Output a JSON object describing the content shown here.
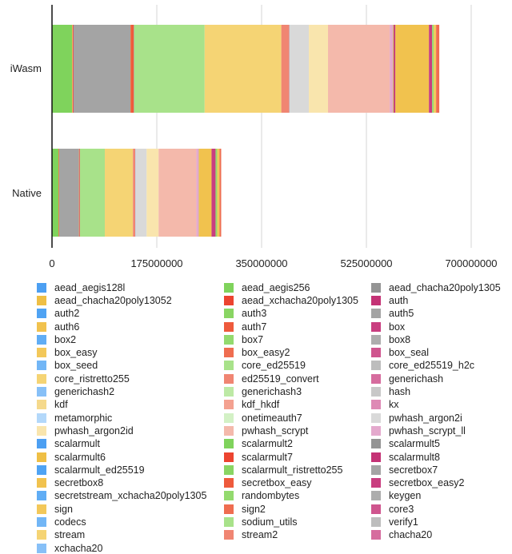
{
  "chart_data": {
    "type": "bar",
    "orientation": "horizontal",
    "stacked": true,
    "title": "",
    "xlabel": "",
    "ylabel": "",
    "categories": [
      "iWasm",
      "Native"
    ],
    "xlim": [
      0,
      700000000
    ],
    "xticks": [
      "0",
      "175000000",
      "350000000",
      "525000000",
      "700000000"
    ],
    "xtick_values": [
      0,
      175000000,
      350000000,
      525000000,
      700000000
    ],
    "grid": true,
    "legend_position": "bottom",
    "series": [
      {
        "name": "aead_aegis128l",
        "color": "#4c9ff2",
        "values": [
          500000,
          300000
        ]
      },
      {
        "name": "aead_aegis256",
        "color": "#7fd35c",
        "values": [
          33000000,
          10500000
        ]
      },
      {
        "name": "aead_chacha20poly1305",
        "color": "#949494",
        "values": [
          0,
          0
        ]
      },
      {
        "name": "aead_chacha20poly13052",
        "color": "#efbf45",
        "values": [
          1000000,
          500000
        ]
      },
      {
        "name": "aead_xchacha20poly1305",
        "color": "#ec4430",
        "values": [
          1300000,
          600000
        ]
      },
      {
        "name": "auth",
        "color": "#c43275",
        "values": [
          200000,
          100000
        ]
      },
      {
        "name": "auth2",
        "color": "#4fa3f3",
        "values": [
          100000,
          100000
        ]
      },
      {
        "name": "auth3",
        "color": "#89d563",
        "values": [
          0,
          0
        ]
      },
      {
        "name": "auth5",
        "color": "#a4a4a4",
        "values": [
          95000000,
          33000000
        ]
      },
      {
        "name": "auth6",
        "color": "#f1c24e",
        "values": [
          200000,
          100000
        ]
      },
      {
        "name": "auth7",
        "color": "#ee5a3c",
        "values": [
          5300000,
          1300000
        ]
      },
      {
        "name": "box",
        "color": "#c93e80",
        "values": [
          200000,
          100000
        ]
      },
      {
        "name": "box2",
        "color": "#60adf5",
        "values": [
          100000,
          100000
        ]
      },
      {
        "name": "box7",
        "color": "#93da6e",
        "values": [
          0,
          0
        ]
      },
      {
        "name": "box8",
        "color": "#adadad",
        "values": [
          0,
          0
        ]
      },
      {
        "name": "box_easy",
        "color": "#f3c85a",
        "values": [
          0,
          0
        ]
      },
      {
        "name": "box_easy2",
        "color": "#ef6d50",
        "values": [
          0,
          0
        ]
      },
      {
        "name": "box_seal",
        "color": "#cf558e",
        "values": [
          0,
          0
        ]
      },
      {
        "name": "box_seed",
        "color": "#72b6f6",
        "values": [
          0,
          0
        ]
      },
      {
        "name": "core_ed25519",
        "color": "#a8e28a",
        "values": [
          118000000,
          41500000
        ]
      },
      {
        "name": "core_ed25519_h2c",
        "color": "#bdbdbd",
        "values": [
          0,
          0
        ]
      },
      {
        "name": "core_ristretto255",
        "color": "#f5d474",
        "values": [
          128000000,
          47000000
        ]
      },
      {
        "name": "ed25519_convert",
        "color": "#f08572",
        "values": [
          13500000,
          4000000
        ]
      },
      {
        "name": "generichash",
        "color": "#d66c9e",
        "values": [
          0,
          0
        ]
      },
      {
        "name": "generichash2",
        "color": "#87c0f7",
        "values": [
          500000,
          300000
        ]
      },
      {
        "name": "generichash3",
        "color": "#bde9a5",
        "values": [
          0,
          0
        ]
      },
      {
        "name": "hash",
        "color": "#c8c8c8",
        "values": [
          0,
          0
        ]
      },
      {
        "name": "kdf",
        "color": "#f5d98c",
        "values": [
          0,
          0
        ]
      },
      {
        "name": "kdf_hkdf",
        "color": "#f4a190",
        "values": [
          0,
          0
        ]
      },
      {
        "name": "kx",
        "color": "#de8ab5",
        "values": [
          0,
          0
        ]
      },
      {
        "name": "metamorphic",
        "color": "#b3d8fa",
        "values": [
          0,
          0
        ]
      },
      {
        "name": "onetimeauth7",
        "color": "#d3f1c5",
        "values": [
          0,
          0
        ]
      },
      {
        "name": "pwhash_argon2i",
        "color": "#d9d9d9",
        "values": [
          32000000,
          18500000
        ]
      },
      {
        "name": "pwhash_argon2id",
        "color": "#f9e5ad",
        "values": [
          32000000,
          20000000
        ]
      },
      {
        "name": "pwhash_scrypt",
        "color": "#f4b9ab",
        "values": [
          103000000,
          63000000
        ]
      },
      {
        "name": "pwhash_scrypt_ll",
        "color": "#e4a9cd",
        "values": [
          5300000,
          4000000
        ]
      },
      {
        "name": "scalarmult",
        "color": "#4c9ff2",
        "values": [
          200000,
          100000
        ]
      },
      {
        "name": "scalarmult2",
        "color": "#7fd35c",
        "values": [
          0,
          0
        ]
      },
      {
        "name": "scalarmult5",
        "color": "#949494",
        "values": [
          0,
          0
        ]
      },
      {
        "name": "scalarmult6",
        "color": "#efbf45",
        "values": [
          1300000,
          1300000
        ]
      },
      {
        "name": "scalarmult7",
        "color": "#ec4430",
        "values": [
          0,
          0
        ]
      },
      {
        "name": "scalarmult8",
        "color": "#c43275",
        "values": [
          2700000,
          0
        ]
      },
      {
        "name": "scalarmult_ed25519",
        "color": "#4fa3f3",
        "values": [
          0,
          0
        ]
      },
      {
        "name": "scalarmult_ristretto255",
        "color": "#89d563",
        "values": [
          0,
          0
        ]
      },
      {
        "name": "secretbox7",
        "color": "#a4a4a4",
        "values": [
          0,
          0
        ]
      },
      {
        "name": "secretbox8",
        "color": "#f1c24e",
        "values": [
          56000000,
          20000000
        ]
      },
      {
        "name": "secretbox_easy",
        "color": "#ee5a3c",
        "values": [
          0,
          0
        ]
      },
      {
        "name": "secretbox_easy2",
        "color": "#c93e80",
        "values": [
          5300000,
          6700000
        ]
      },
      {
        "name": "secretstream_xchacha20poly1305",
        "color": "#60adf5",
        "values": [
          0,
          0
        ]
      },
      {
        "name": "randombytes",
        "color": "#93da6e",
        "values": [
          2700000,
          2700000
        ]
      },
      {
        "name": "keygen",
        "color": "#adadad",
        "values": [
          0,
          0
        ]
      },
      {
        "name": "sign",
        "color": "#f3c85a",
        "values": [
          4000000,
          4000000
        ]
      },
      {
        "name": "sign2",
        "color": "#ef6d50",
        "values": [
          5300000,
          2700000
        ]
      },
      {
        "name": "core3",
        "color": "#cf558e",
        "values": [
          0,
          0
        ]
      },
      {
        "name": "codecs",
        "color": "#72b6f6",
        "values": [
          0,
          0
        ]
      },
      {
        "name": "sodium_utils",
        "color": "#a8e28a",
        "values": [
          0,
          0
        ]
      },
      {
        "name": "verify1",
        "color": "#bdbdbd",
        "values": [
          0,
          0
        ]
      },
      {
        "name": "stream",
        "color": "#f5d474",
        "values": [
          0,
          0
        ]
      },
      {
        "name": "stream2",
        "color": "#f08572",
        "values": [
          0,
          0
        ]
      },
      {
        "name": "chacha20",
        "color": "#d66c9e",
        "values": [
          0,
          0
        ]
      },
      {
        "name": "xchacha20",
        "color": "#87c0f7",
        "values": [
          0,
          0
        ]
      }
    ]
  },
  "legend_rows": [
    [
      "aead_aegis128l",
      "aead_aegis256",
      "aead_chacha20poly1305"
    ],
    [
      "aead_chacha20poly13052",
      "aead_xchacha20poly1305",
      "auth"
    ],
    [
      "auth2",
      "auth3",
      "auth5"
    ],
    [
      "auth6",
      "auth7",
      "box"
    ],
    [
      "box2",
      "box7",
      "box8"
    ],
    [
      "box_easy",
      "box_easy2",
      "box_seal"
    ],
    [
      "box_seed",
      "core_ed25519",
      "core_ed25519_h2c"
    ],
    [
      "core_ristretto255",
      "ed25519_convert",
      "generichash"
    ],
    [
      "generichash2",
      "generichash3",
      "hash"
    ],
    [
      "kdf",
      "kdf_hkdf",
      "kx"
    ],
    [
      "metamorphic",
      "onetimeauth7",
      "pwhash_argon2i"
    ],
    [
      "pwhash_argon2id",
      "pwhash_scrypt",
      "pwhash_scrypt_ll"
    ],
    [
      "scalarmult",
      "scalarmult2",
      "scalarmult5"
    ],
    [
      "scalarmult6",
      "scalarmult7",
      "scalarmult8"
    ],
    [
      "scalarmult_ed25519",
      "scalarmult_ristretto255",
      "secretbox7"
    ],
    [
      "secretbox8",
      "secretbox_easy",
      "secretbox_easy2"
    ],
    [
      "secretstream_xchacha20poly1305",
      "randombytes",
      "keygen"
    ],
    [
      "sign",
      "sign2",
      "core3"
    ],
    [
      "codecs",
      "sodium_utils",
      "verify1"
    ],
    [
      "stream",
      "stream2",
      "chacha20"
    ],
    [
      "xchacha20"
    ]
  ]
}
